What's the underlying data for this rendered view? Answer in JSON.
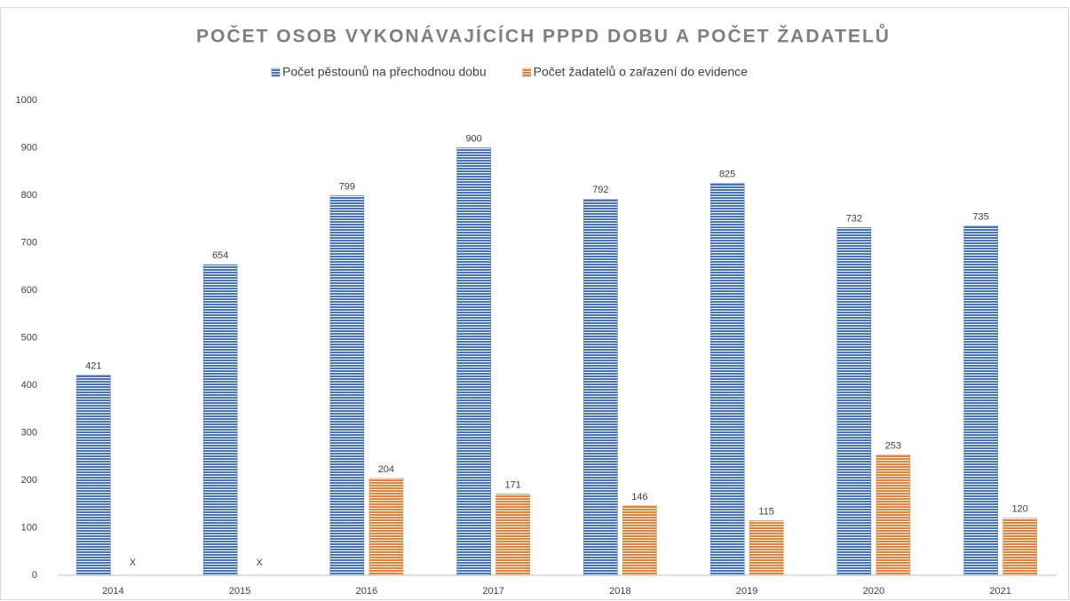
{
  "chart_data": {
    "type": "bar",
    "title": "POČET OSOB VYKONÁVAJÍCÍCH PPPD DOBU A POČET ŽADATELŮ",
    "categories": [
      "2014",
      "2015",
      "2016",
      "2017",
      "2018",
      "2019",
      "2020",
      "2021"
    ],
    "series": [
      {
        "name": "Počet pěstounů na přechodnou dobu",
        "color": "#4472c4",
        "values": [
          421,
          654,
          799,
          900,
          792,
          825,
          732,
          735
        ]
      },
      {
        "name": "Počet žadatelů o zařazení do evidence",
        "color": "#ed7d31",
        "values": [
          null,
          null,
          204,
          171,
          146,
          115,
          253,
          120
        ],
        "value_labels": [
          "X",
          "X",
          "204",
          "171",
          "146",
          "115",
          "253",
          "120"
        ]
      }
    ],
    "ylim": [
      0,
      1000
    ],
    "yticks": [
      0,
      100,
      200,
      300,
      400,
      500,
      600,
      700,
      800,
      900,
      1000
    ],
    "grid": false,
    "legend": "top"
  }
}
